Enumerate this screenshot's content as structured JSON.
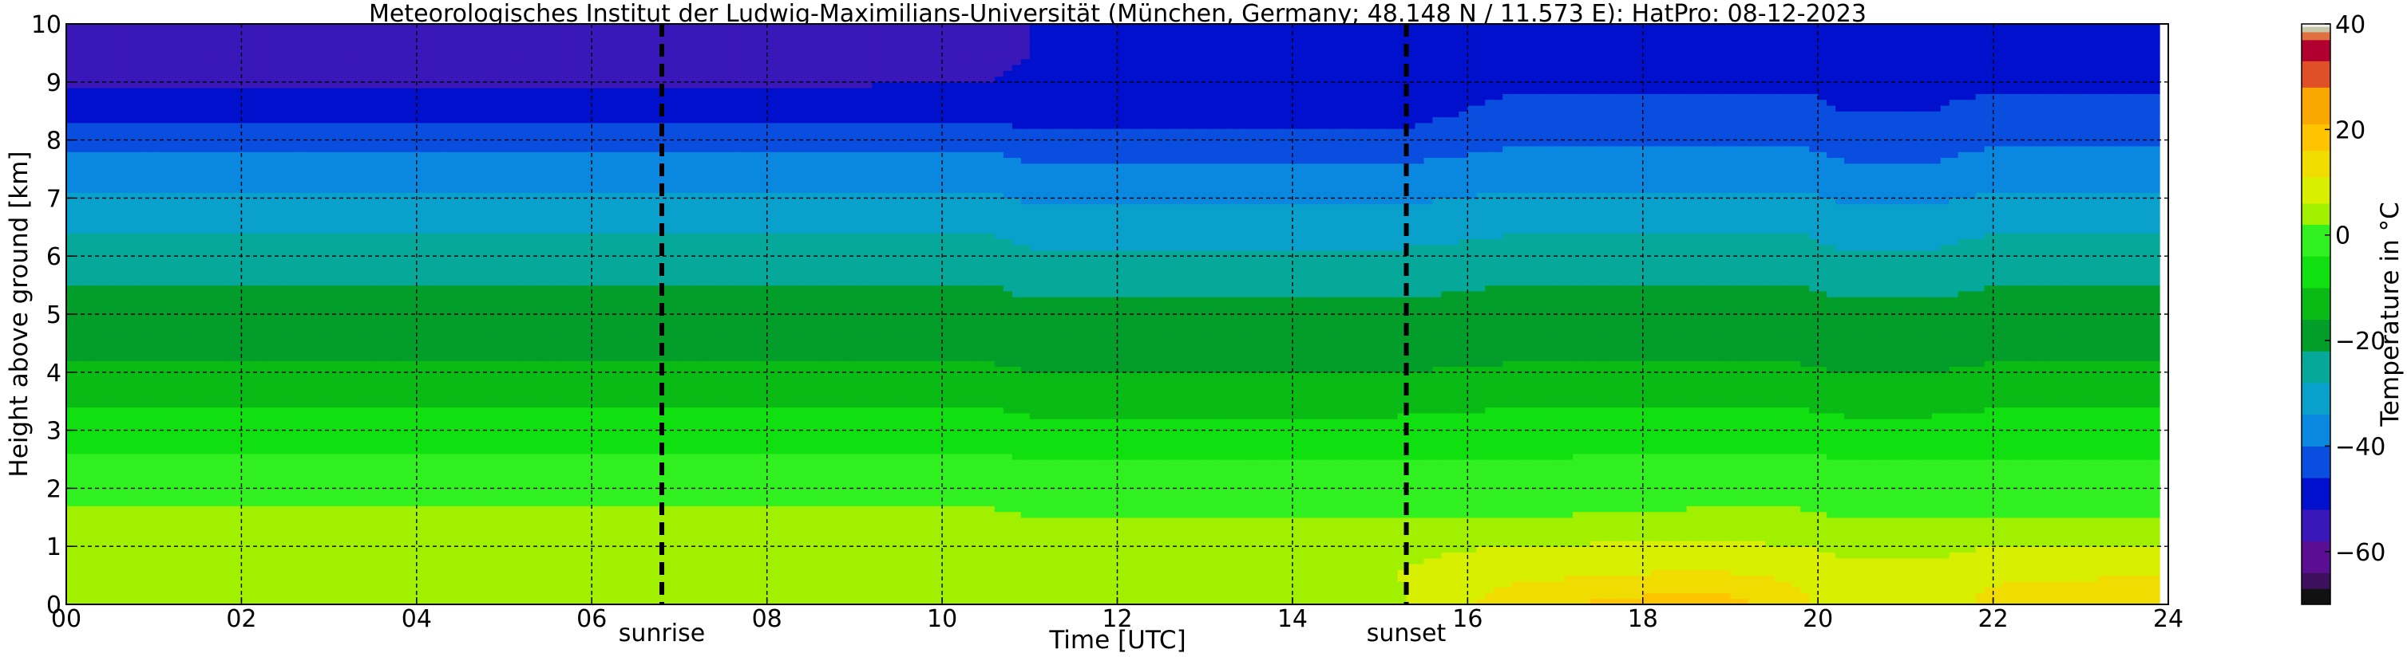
{
  "chart_data": {
    "type": "heatmap",
    "title": "Meteorologisches Institut der Ludwig-Maximilians-Universität (München, Germany; 48.148 N / 11.573 E):    HatPro: 08-12-2023",
    "xlabel": "Time [UTC]",
    "ylabel": "Height above ground [km]",
    "xlim": [
      0,
      24
    ],
    "ylim": [
      0,
      10
    ],
    "x_ticks": [
      0,
      2,
      4,
      6,
      8,
      10,
      12,
      14,
      16,
      18,
      20,
      22,
      24
    ],
    "x_tick_labels": [
      "00",
      "02",
      "04",
      "06",
      "08",
      "10",
      "12",
      "14",
      "16",
      "18",
      "20",
      "22",
      "24"
    ],
    "y_ticks": [
      0,
      1,
      2,
      3,
      4,
      5,
      6,
      7,
      8,
      9,
      10
    ],
    "y_tick_labels": [
      "0",
      "1",
      "2",
      "3",
      "4",
      "5",
      "6",
      "7",
      "8",
      "9",
      "10"
    ],
    "grid": true,
    "colorbar": {
      "label": "Temperature in °C",
      "range": [
        -70,
        40
      ],
      "ticks": [
        40,
        20,
        0,
        -20,
        -40,
        -60
      ],
      "tick_labels": [
        "40",
        "20",
        "0",
        "−20",
        "−40",
        "−60"
      ],
      "colors": [
        {
          "from": -70,
          "to": -67,
          "color": "#111111"
        },
        {
          "from": -67,
          "to": -64,
          "color": "#3d0f5c"
        },
        {
          "from": -64,
          "to": -58,
          "color": "#5a0f92"
        },
        {
          "from": -58,
          "to": -52,
          "color": "#3a17b8"
        },
        {
          "from": -52,
          "to": -46,
          "color": "#0010cc"
        },
        {
          "from": -46,
          "to": -40,
          "color": "#0a4ee0"
        },
        {
          "from": -40,
          "to": -34,
          "color": "#0a88e0"
        },
        {
          "from": -34,
          "to": -28,
          "color": "#0aa0cc"
        },
        {
          "from": -28,
          "to": -22,
          "color": "#06a89a"
        },
        {
          "from": -22,
          "to": -16,
          "color": "#039d2a"
        },
        {
          "from": -16,
          "to": -10,
          "color": "#0aba15"
        },
        {
          "from": -10,
          "to": -4,
          "color": "#10e010"
        },
        {
          "from": -4,
          "to": 2,
          "color": "#30f020"
        },
        {
          "from": 2,
          "to": 6,
          "color": "#a0f000"
        },
        {
          "from": 6,
          "to": 11,
          "color": "#d8f000"
        },
        {
          "from": 11,
          "to": 16,
          "color": "#f0dc00"
        },
        {
          "from": 16,
          "to": 21,
          "color": "#ffc400"
        },
        {
          "from": 21,
          "to": 28,
          "color": "#f8a800"
        },
        {
          "from": 28,
          "to": 33,
          "color": "#e05028"
        },
        {
          "from": 33,
          "to": 37,
          "color": "#b00030"
        },
        {
          "from": 37,
          "to": 38.5,
          "color": "#e07040"
        },
        {
          "from": 38.5,
          "to": 39.5,
          "color": "#c8c8a8"
        },
        {
          "from": 39.5,
          "to": 40,
          "color": "#f0f0e8"
        }
      ]
    },
    "annotations": [
      {
        "text": "sunrise",
        "x": 6.8
      },
      {
        "text": "sunset",
        "x": 15.3
      }
    ],
    "profile_heights_km": [
      0,
      0.5,
      1,
      1.5,
      2,
      2.5,
      3,
      3.5,
      4,
      4.5,
      5,
      5.5,
      6,
      6.5,
      7,
      7.5,
      8,
      8.5,
      9,
      9.5,
      10
    ],
    "profiles": [
      {
        "time": 0,
        "temps": [
          4,
          6,
          5,
          3,
          1,
          -3,
          -7,
          -11,
          -15,
          -18,
          -20,
          -22,
          -25,
          -29,
          -33,
          -37,
          -42,
          -49,
          -53,
          -55,
          -57
        ]
      },
      {
        "time": 6.5,
        "temps": [
          3,
          6,
          5,
          3,
          0,
          -3,
          -7,
          -11,
          -15,
          -18,
          -20,
          -22,
          -25,
          -29,
          -33,
          -37,
          -42,
          -49,
          -53,
          -54,
          -56
        ]
      },
      {
        "time": 10.6,
        "temps": [
          5,
          6,
          5,
          3,
          0,
          -3,
          -7,
          -11,
          -15,
          -18,
          -20,
          -22,
          -25,
          -29,
          -33,
          -37,
          -42,
          -49,
          -52,
          -53,
          -54
        ]
      },
      {
        "time": 11,
        "temps": [
          5,
          6,
          5,
          2,
          -1,
          -4,
          -8,
          -12,
          -16,
          -19,
          -21,
          -23,
          -27,
          -31,
          -35,
          -39,
          -44,
          -49,
          -51,
          -52,
          -52
        ]
      },
      {
        "time": 15.2,
        "temps": [
          5,
          6,
          5,
          2,
          -1,
          -4,
          -8,
          -12,
          -16,
          -19,
          -21,
          -23,
          -27,
          -31,
          -35,
          -39,
          -44,
          -49,
          -51,
          -52,
          -52
        ]
      },
      {
        "time": 16.5,
        "temps": [
          14,
          10,
          6,
          2,
          -1,
          -4,
          -7,
          -11,
          -15,
          -18,
          -20,
          -22,
          -25,
          -29,
          -33,
          -37,
          -41,
          -44,
          -47,
          -49,
          -50
        ]
      },
      {
        "time": 18.7,
        "temps": [
          20,
          12,
          7,
          3,
          0,
          -3,
          -7,
          -11,
          -15,
          -18,
          -20,
          -22,
          -25,
          -29,
          -33,
          -37,
          -41,
          -44,
          -47,
          -49,
          -50
        ]
      },
      {
        "time": 19.8,
        "temps": [
          12,
          10,
          6,
          3,
          0,
          -3,
          -7,
          -11,
          -15,
          -18,
          -20,
          -22,
          -25,
          -29,
          -33,
          -37,
          -41,
          -44,
          -47,
          -49,
          -50
        ]
      },
      {
        "time": 20.3,
        "temps": [
          8,
          7,
          5,
          2,
          -1,
          -4,
          -8,
          -12,
          -16,
          -19,
          -21,
          -23,
          -27,
          -31,
          -35,
          -39,
          -43,
          -46,
          -48,
          -50,
          -51
        ]
      },
      {
        "time": 21.3,
        "temps": [
          8,
          7,
          5,
          2,
          -1,
          -4,
          -8,
          -12,
          -16,
          -19,
          -21,
          -23,
          -27,
          -31,
          -35,
          -39,
          -43,
          -46,
          -48,
          -50,
          -51
        ]
      },
      {
        "time": 22,
        "temps": [
          13,
          10,
          6,
          2,
          -1,
          -4,
          -7,
          -11,
          -15,
          -18,
          -20,
          -22,
          -25,
          -29,
          -33,
          -37,
          -41,
          -44,
          -47,
          -49,
          -50
        ]
      },
      {
        "time": 23.9,
        "temps": [
          15,
          11,
          6,
          2,
          -1,
          -4,
          -7,
          -11,
          -15,
          -18,
          -20,
          -22,
          -25,
          -29,
          -33,
          -37,
          -41,
          -44,
          -47,
          -49,
          -50
        ]
      }
    ],
    "data_end_time": 23.9
  }
}
